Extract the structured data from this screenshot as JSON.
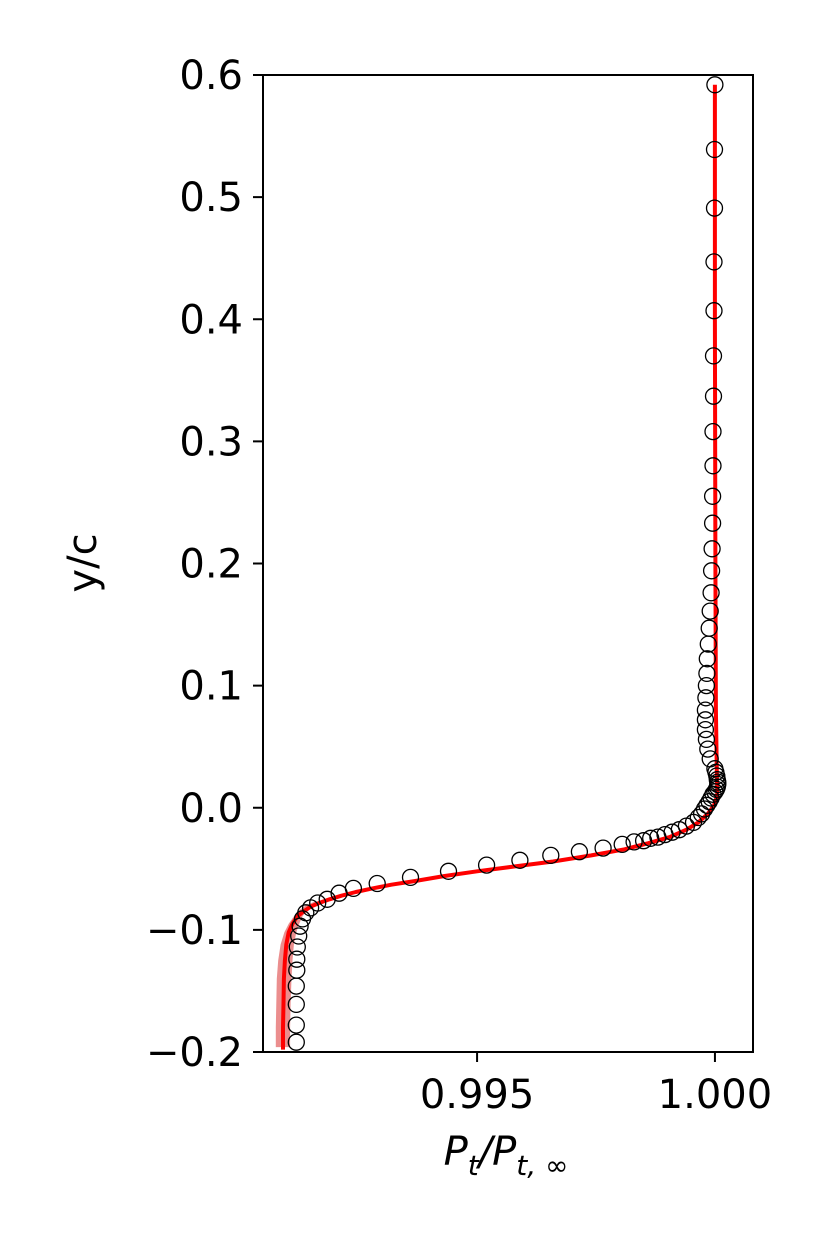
{
  "chart_data": {
    "type": "line",
    "title": "",
    "xlabel": {
      "main": "P",
      "sub1": "t",
      "slash": "/P",
      "sub2": "t, ∞"
    },
    "ylabel": "y/c",
    "xlim": [
      0.9905,
      1.0008
    ],
    "ylim": [
      -0.2,
      0.6
    ],
    "grid": false,
    "legend": "none",
    "x_ticks": [
      {
        "value": 0.995,
        "label": "0.995"
      },
      {
        "value": 1.0,
        "label": "1.000"
      }
    ],
    "y_ticks": [
      {
        "value": 0.6,
        "label": "0.6"
      },
      {
        "value": 0.5,
        "label": "0.5"
      },
      {
        "value": 0.4,
        "label": "0.4"
      },
      {
        "value": 0.3,
        "label": "0.3"
      },
      {
        "value": 0.2,
        "label": "0.2"
      },
      {
        "value": 0.1,
        "label": "0.1"
      },
      {
        "value": 0.0,
        "label": "0.0"
      },
      {
        "value": -0.1,
        "label": "−0.1"
      },
      {
        "value": -0.2,
        "label": "−0.2"
      }
    ],
    "colors": {
      "line": "#ff0000",
      "band": "#e87a7a",
      "markers": "#000000"
    },
    "series": [
      {
        "kind": "line",
        "x": [
          0.99092,
          0.99092,
          0.99093,
          0.99094,
          0.99096,
          0.99099,
          0.99104,
          0.99112,
          0.99122,
          0.99135,
          0.9915,
          0.99168,
          0.9919,
          0.99215,
          0.99245,
          0.9928,
          0.9932,
          0.9937,
          0.9943,
          0.995,
          0.9958,
          0.9966,
          0.9974,
          0.9981,
          0.9986,
          0.99905,
          0.9994,
          0.99965,
          0.99985,
          0.99998,
          1.00005,
          1.00004,
          1.00002,
          1.00001,
          1.0,
          1.0
        ],
        "y": [
          -0.198,
          -0.18,
          -0.16,
          -0.14,
          -0.125,
          -0.112,
          -0.102,
          -0.095,
          -0.089,
          -0.085,
          -0.081,
          -0.078,
          -0.075,
          -0.072,
          -0.069,
          -0.066,
          -0.063,
          -0.06,
          -0.056,
          -0.052,
          -0.048,
          -0.044,
          -0.039,
          -0.034,
          -0.029,
          -0.024,
          -0.018,
          -0.012,
          -0.005,
          0.002,
          0.01,
          0.03,
          0.08,
          0.2,
          0.4,
          0.592
        ]
      },
      {
        "kind": "band",
        "y": [
          -0.196,
          -0.18,
          -0.16,
          -0.14,
          -0.125,
          -0.112,
          -0.102,
          -0.095,
          -0.089,
          -0.084,
          -0.08,
          -0.077
        ],
        "lo": [
          0.99077,
          0.99077,
          0.99078,
          0.99079,
          0.99082,
          0.99087,
          0.99095,
          0.99104,
          0.99115,
          0.99126,
          0.9914,
          0.99158
        ],
        "hi": [
          0.99107,
          0.99107,
          0.99108,
          0.9911,
          0.99112,
          0.99115,
          0.9912,
          0.99126,
          0.99133,
          0.99142,
          0.99155,
          0.99172
        ]
      },
      {
        "kind": "scatter",
        "x": [
          0.9912,
          0.9912,
          0.9912,
          0.9912,
          0.99121,
          0.99121,
          0.99122,
          0.99125,
          0.99128,
          0.99133,
          0.9914,
          0.9915,
          0.99165,
          0.99185,
          0.9921,
          0.9924,
          0.9929,
          0.9936,
          0.9944,
          0.9952,
          0.9959,
          0.99655,
          0.99715,
          0.99765,
          0.99805,
          0.9983,
          0.9985,
          0.99865,
          0.9988,
          0.99895,
          0.9991,
          0.99925,
          0.9994,
          0.99955,
          0.99965,
          0.99972,
          0.99978,
          0.99983,
          0.99988,
          0.99992,
          0.99996,
          1.0,
          1.00003,
          1.00005,
          1.00006,
          1.00006,
          1.00005,
          1.00004,
          1.00002,
          1.0,
          0.9999,
          0.99985,
          0.99982,
          0.9998,
          0.9998,
          0.9998,
          0.99981,
          0.99982,
          0.99983,
          0.99984,
          0.99986,
          0.99988,
          0.9999,
          0.99992,
          0.99993,
          0.99994,
          0.99995,
          0.99995,
          0.99996,
          0.99996,
          0.99997,
          0.99997,
          0.99998,
          0.99998,
          0.99999,
          0.99999,
          1.0
        ],
        "y": [
          -0.192,
          -0.178,
          -0.161,
          -0.146,
          -0.133,
          -0.124,
          -0.114,
          -0.105,
          -0.097,
          -0.091,
          -0.086,
          -0.082,
          -0.078,
          -0.075,
          -0.07,
          -0.066,
          -0.062,
          -0.057,
          -0.052,
          -0.047,
          -0.043,
          -0.039,
          -0.036,
          -0.033,
          -0.03,
          -0.028,
          -0.027,
          -0.025,
          -0.024,
          -0.022,
          -0.02,
          -0.018,
          -0.015,
          -0.012,
          -0.008,
          -0.005,
          -0.001,
          0.002,
          0.005,
          0.008,
          0.011,
          0.013,
          0.015,
          0.017,
          0.019,
          0.021,
          0.023,
          0.026,
          0.029,
          0.032,
          0.04,
          0.048,
          0.056,
          0.064,
          0.072,
          0.08,
          0.09,
          0.1,
          0.11,
          0.122,
          0.134,
          0.147,
          0.161,
          0.176,
          0.194,
          0.212,
          0.233,
          0.255,
          0.28,
          0.308,
          0.337,
          0.37,
          0.407,
          0.447,
          0.491,
          0.539,
          0.592
        ]
      }
    ]
  }
}
